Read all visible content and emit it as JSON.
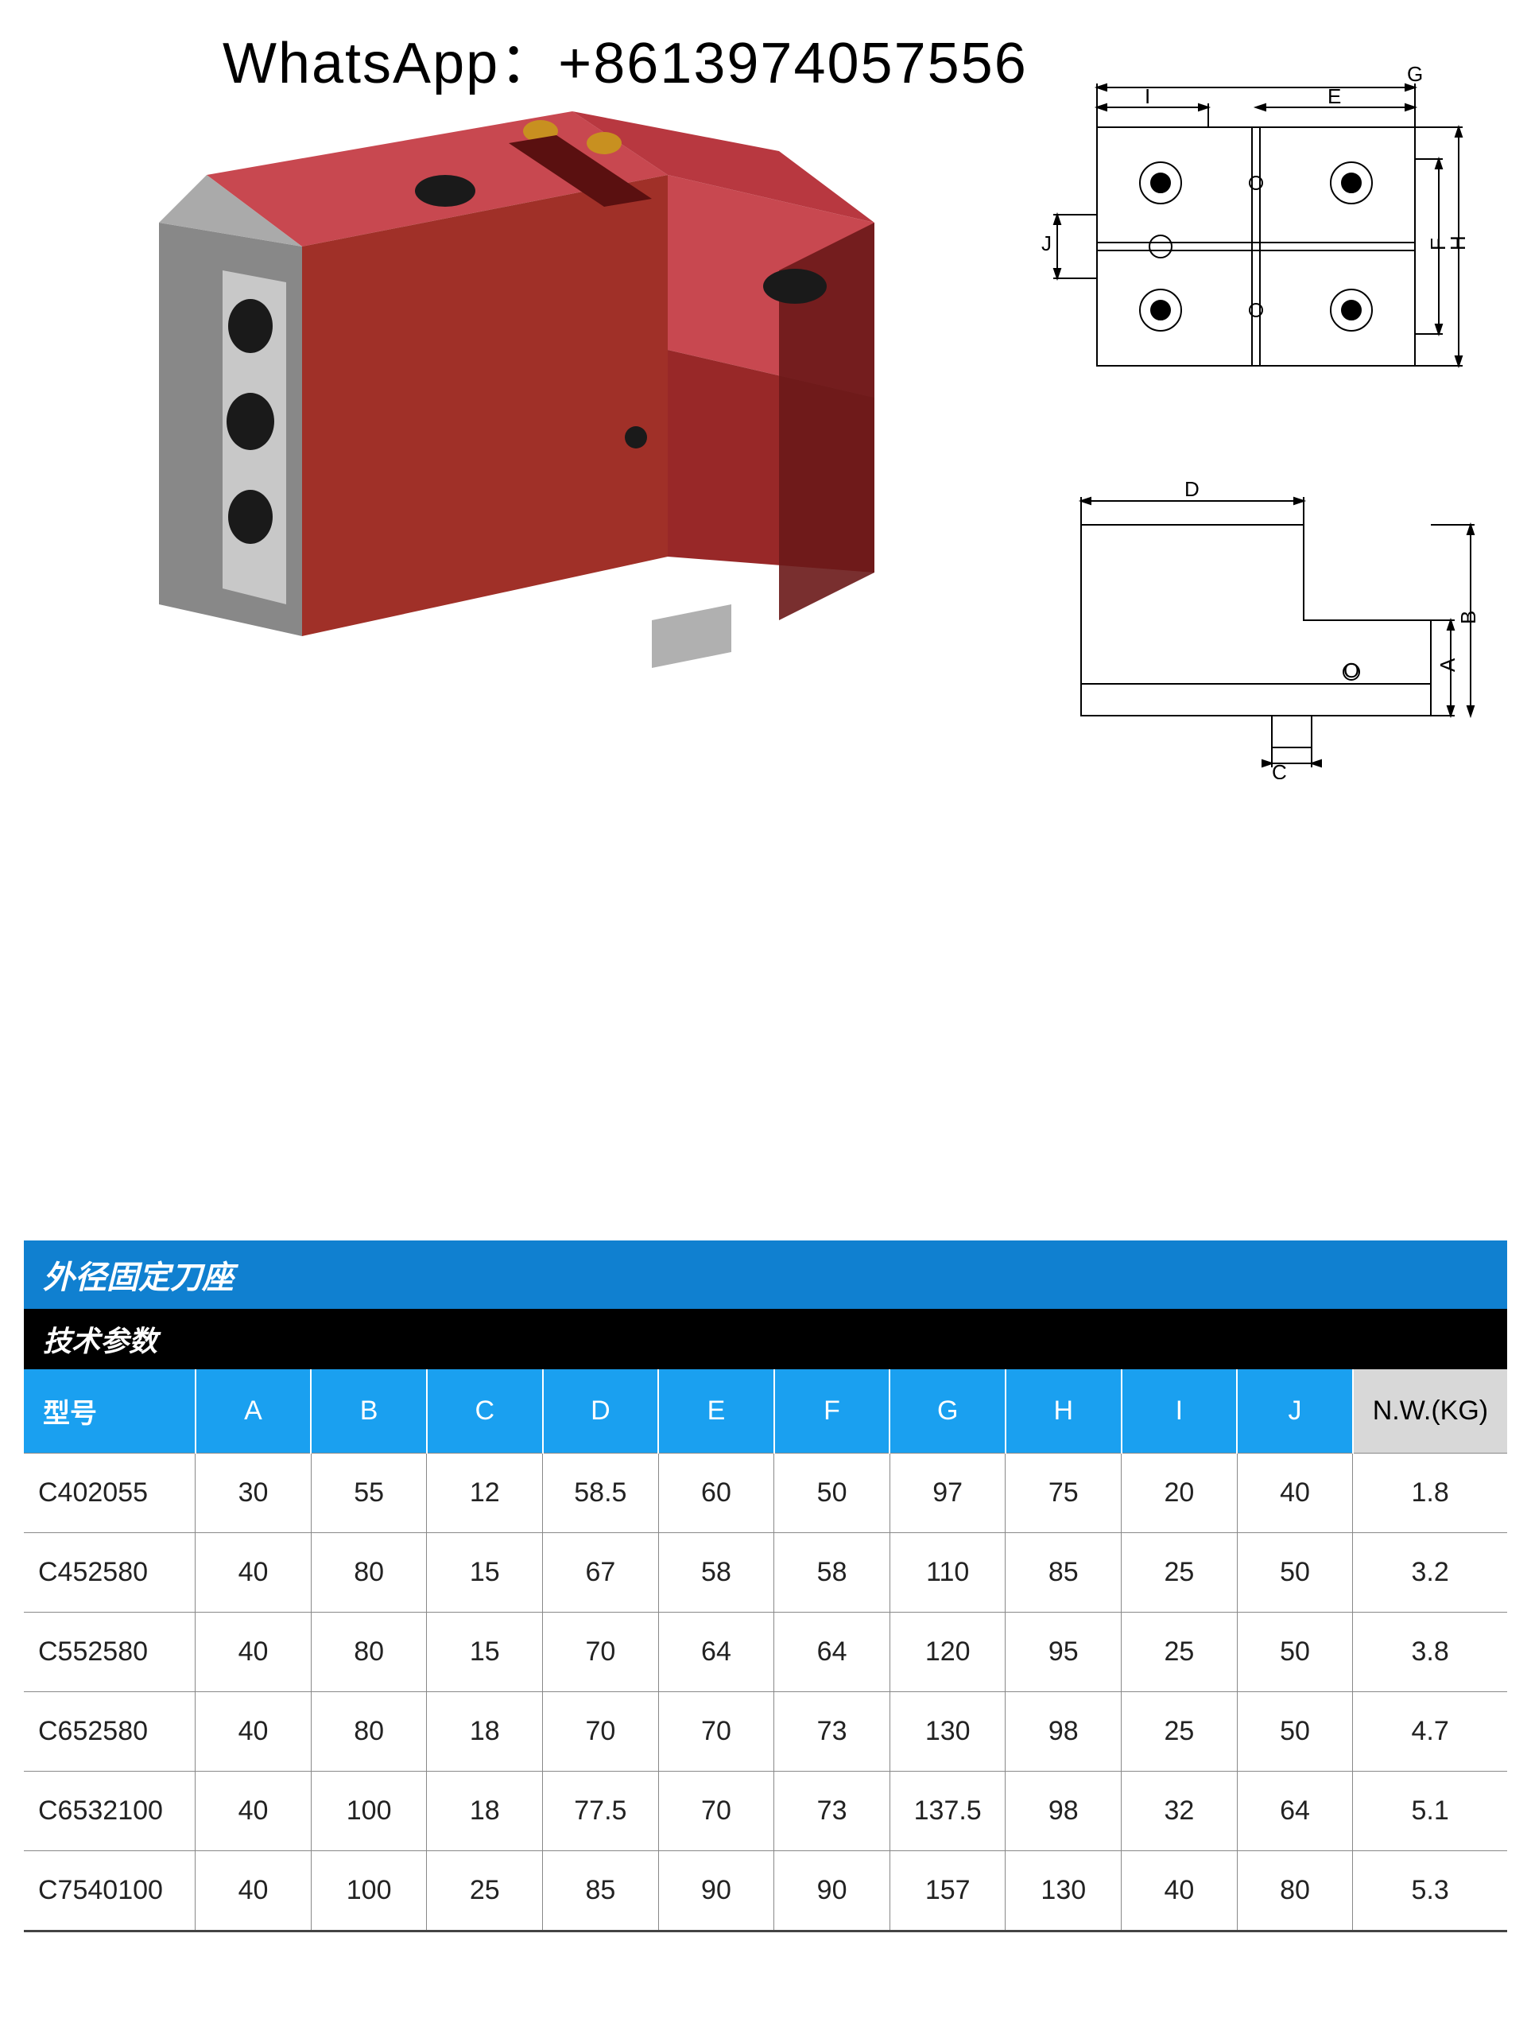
{
  "header": {
    "contact": "WhatsApp：+8613974057556"
  },
  "product_image": {
    "body_color": "#a03028",
    "body_highlight": "#c84850",
    "body_shadow": "#6a1818",
    "steel_color": "#b8b8b8",
    "steel_dark": "#888888",
    "hole_color": "#1a1a1a"
  },
  "diagrams": {
    "line_color": "#000000",
    "line_width": 2,
    "top": {
      "labels": [
        "G",
        "I",
        "E",
        "J",
        "F",
        "H"
      ]
    },
    "bottom": {
      "labels": [
        "D",
        "O",
        "A",
        "B",
        "C"
      ]
    }
  },
  "table": {
    "title": "外径固定刀座",
    "subtitle": "技术参数",
    "title_bg": "#1080d0",
    "subtitle_bg": "#000000",
    "header_bg": "#1aa0f0",
    "nw_header_bg": "#d8d8d8",
    "columns": [
      "型号",
      "A",
      "B",
      "C",
      "D",
      "E",
      "F",
      "G",
      "H",
      "I",
      "J",
      "N.W.(KG)"
    ],
    "rows": [
      [
        "C402055",
        "30",
        "55",
        "12",
        "58.5",
        "60",
        "50",
        "97",
        "75",
        "20",
        "40",
        "1.8"
      ],
      [
        "C452580",
        "40",
        "80",
        "15",
        "67",
        "58",
        "58",
        "110",
        "85",
        "25",
        "50",
        "3.2"
      ],
      [
        "C552580",
        "40",
        "80",
        "15",
        "70",
        "64",
        "64",
        "120",
        "95",
        "25",
        "50",
        "3.8"
      ],
      [
        "C652580",
        "40",
        "80",
        "18",
        "70",
        "70",
        "73",
        "130",
        "98",
        "25",
        "50",
        "4.7"
      ],
      [
        "C6532100",
        "40",
        "100",
        "18",
        "77.5",
        "70",
        "73",
        "137.5",
        "98",
        "32",
        "64",
        "5.1"
      ],
      [
        "C7540100",
        "40",
        "100",
        "25",
        "85",
        "90",
        "90",
        "157",
        "130",
        "40",
        "80",
        "5.3"
      ]
    ],
    "font_size_header": 34,
    "font_size_cell": 34,
    "border_color": "#888888"
  }
}
